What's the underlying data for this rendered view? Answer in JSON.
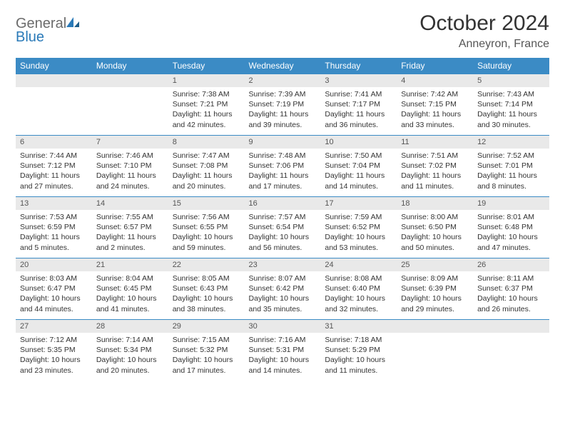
{
  "logo": {
    "text1": "General",
    "text2": "Blue"
  },
  "header": {
    "title": "October 2024",
    "subtitle": "Anneyron, France"
  },
  "colors": {
    "header_bg": "#3b8bc5",
    "header_fg": "#ffffff",
    "daynum_bg": "#e9e9e9",
    "rule": "#3b8bc5",
    "logo_gray": "#6b6b6b",
    "logo_blue": "#2a7ab8"
  },
  "weekdays": [
    "Sunday",
    "Monday",
    "Tuesday",
    "Wednesday",
    "Thursday",
    "Friday",
    "Saturday"
  ],
  "weeks": [
    [
      {
        "n": "",
        "sr": "",
        "ss": "",
        "dl": ""
      },
      {
        "n": "",
        "sr": "",
        "ss": "",
        "dl": ""
      },
      {
        "n": "1",
        "sr": "Sunrise: 7:38 AM",
        "ss": "Sunset: 7:21 PM",
        "dl": "Daylight: 11 hours and 42 minutes."
      },
      {
        "n": "2",
        "sr": "Sunrise: 7:39 AM",
        "ss": "Sunset: 7:19 PM",
        "dl": "Daylight: 11 hours and 39 minutes."
      },
      {
        "n": "3",
        "sr": "Sunrise: 7:41 AM",
        "ss": "Sunset: 7:17 PM",
        "dl": "Daylight: 11 hours and 36 minutes."
      },
      {
        "n": "4",
        "sr": "Sunrise: 7:42 AM",
        "ss": "Sunset: 7:15 PM",
        "dl": "Daylight: 11 hours and 33 minutes."
      },
      {
        "n": "5",
        "sr": "Sunrise: 7:43 AM",
        "ss": "Sunset: 7:14 PM",
        "dl": "Daylight: 11 hours and 30 minutes."
      }
    ],
    [
      {
        "n": "6",
        "sr": "Sunrise: 7:44 AM",
        "ss": "Sunset: 7:12 PM",
        "dl": "Daylight: 11 hours and 27 minutes."
      },
      {
        "n": "7",
        "sr": "Sunrise: 7:46 AM",
        "ss": "Sunset: 7:10 PM",
        "dl": "Daylight: 11 hours and 24 minutes."
      },
      {
        "n": "8",
        "sr": "Sunrise: 7:47 AM",
        "ss": "Sunset: 7:08 PM",
        "dl": "Daylight: 11 hours and 20 minutes."
      },
      {
        "n": "9",
        "sr": "Sunrise: 7:48 AM",
        "ss": "Sunset: 7:06 PM",
        "dl": "Daylight: 11 hours and 17 minutes."
      },
      {
        "n": "10",
        "sr": "Sunrise: 7:50 AM",
        "ss": "Sunset: 7:04 PM",
        "dl": "Daylight: 11 hours and 14 minutes."
      },
      {
        "n": "11",
        "sr": "Sunrise: 7:51 AM",
        "ss": "Sunset: 7:02 PM",
        "dl": "Daylight: 11 hours and 11 minutes."
      },
      {
        "n": "12",
        "sr": "Sunrise: 7:52 AM",
        "ss": "Sunset: 7:01 PM",
        "dl": "Daylight: 11 hours and 8 minutes."
      }
    ],
    [
      {
        "n": "13",
        "sr": "Sunrise: 7:53 AM",
        "ss": "Sunset: 6:59 PM",
        "dl": "Daylight: 11 hours and 5 minutes."
      },
      {
        "n": "14",
        "sr": "Sunrise: 7:55 AM",
        "ss": "Sunset: 6:57 PM",
        "dl": "Daylight: 11 hours and 2 minutes."
      },
      {
        "n": "15",
        "sr": "Sunrise: 7:56 AM",
        "ss": "Sunset: 6:55 PM",
        "dl": "Daylight: 10 hours and 59 minutes."
      },
      {
        "n": "16",
        "sr": "Sunrise: 7:57 AM",
        "ss": "Sunset: 6:54 PM",
        "dl": "Daylight: 10 hours and 56 minutes."
      },
      {
        "n": "17",
        "sr": "Sunrise: 7:59 AM",
        "ss": "Sunset: 6:52 PM",
        "dl": "Daylight: 10 hours and 53 minutes."
      },
      {
        "n": "18",
        "sr": "Sunrise: 8:00 AM",
        "ss": "Sunset: 6:50 PM",
        "dl": "Daylight: 10 hours and 50 minutes."
      },
      {
        "n": "19",
        "sr": "Sunrise: 8:01 AM",
        "ss": "Sunset: 6:48 PM",
        "dl": "Daylight: 10 hours and 47 minutes."
      }
    ],
    [
      {
        "n": "20",
        "sr": "Sunrise: 8:03 AM",
        "ss": "Sunset: 6:47 PM",
        "dl": "Daylight: 10 hours and 44 minutes."
      },
      {
        "n": "21",
        "sr": "Sunrise: 8:04 AM",
        "ss": "Sunset: 6:45 PM",
        "dl": "Daylight: 10 hours and 41 minutes."
      },
      {
        "n": "22",
        "sr": "Sunrise: 8:05 AM",
        "ss": "Sunset: 6:43 PM",
        "dl": "Daylight: 10 hours and 38 minutes."
      },
      {
        "n": "23",
        "sr": "Sunrise: 8:07 AM",
        "ss": "Sunset: 6:42 PM",
        "dl": "Daylight: 10 hours and 35 minutes."
      },
      {
        "n": "24",
        "sr": "Sunrise: 8:08 AM",
        "ss": "Sunset: 6:40 PM",
        "dl": "Daylight: 10 hours and 32 minutes."
      },
      {
        "n": "25",
        "sr": "Sunrise: 8:09 AM",
        "ss": "Sunset: 6:39 PM",
        "dl": "Daylight: 10 hours and 29 minutes."
      },
      {
        "n": "26",
        "sr": "Sunrise: 8:11 AM",
        "ss": "Sunset: 6:37 PM",
        "dl": "Daylight: 10 hours and 26 minutes."
      }
    ],
    [
      {
        "n": "27",
        "sr": "Sunrise: 7:12 AM",
        "ss": "Sunset: 5:35 PM",
        "dl": "Daylight: 10 hours and 23 minutes."
      },
      {
        "n": "28",
        "sr": "Sunrise: 7:14 AM",
        "ss": "Sunset: 5:34 PM",
        "dl": "Daylight: 10 hours and 20 minutes."
      },
      {
        "n": "29",
        "sr": "Sunrise: 7:15 AM",
        "ss": "Sunset: 5:32 PM",
        "dl": "Daylight: 10 hours and 17 minutes."
      },
      {
        "n": "30",
        "sr": "Sunrise: 7:16 AM",
        "ss": "Sunset: 5:31 PM",
        "dl": "Daylight: 10 hours and 14 minutes."
      },
      {
        "n": "31",
        "sr": "Sunrise: 7:18 AM",
        "ss": "Sunset: 5:29 PM",
        "dl": "Daylight: 10 hours and 11 minutes."
      },
      {
        "n": "",
        "sr": "",
        "ss": "",
        "dl": ""
      },
      {
        "n": "",
        "sr": "",
        "ss": "",
        "dl": ""
      }
    ]
  ]
}
